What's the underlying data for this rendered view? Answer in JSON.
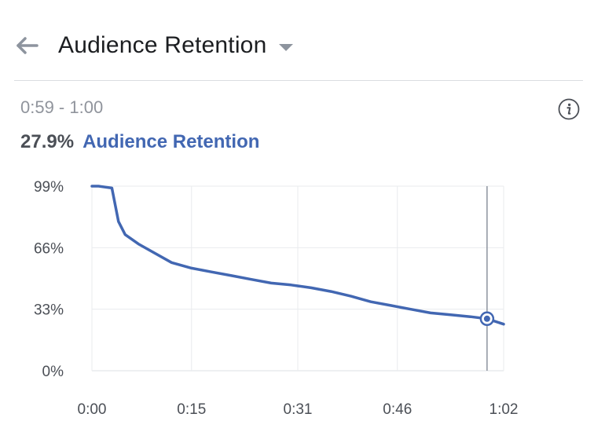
{
  "header": {
    "title": "Audience Retention",
    "back_icon": "arrow-left-icon",
    "dropdown_icon": "caret-down-icon"
  },
  "range_label": "0:59 - 1:00",
  "info_icon": "info-icon",
  "summary": {
    "value": "27.9%",
    "label": "Audience Retention"
  },
  "colors": {
    "series": "#4267b2",
    "grid": "#e9ebee",
    "cursor": "#8d949e"
  },
  "chart_data": {
    "type": "line",
    "series": [
      {
        "name": "Audience Retention",
        "x": [
          0,
          1,
          3,
          4,
          5,
          7,
          9,
          12,
          15,
          18,
          21,
          24,
          27,
          30,
          33,
          36,
          39,
          42,
          45,
          48,
          51,
          54,
          57,
          59.5,
          62
        ],
        "y": [
          99,
          99,
          98,
          80,
          73,
          68,
          64,
          58,
          55,
          53,
          51,
          49,
          47,
          46,
          44.5,
          42.5,
          40,
          37,
          35,
          33,
          31,
          30,
          29,
          27.9,
          25
        ]
      }
    ],
    "xlim": [
      0,
      62
    ],
    "ylim": [
      0,
      99
    ],
    "xticks": [
      0,
      15,
      31,
      46,
      62
    ],
    "xtick_labels": [
      "0:00",
      "0:15",
      "0:31",
      "0:46",
      "1:02"
    ],
    "yticks": [
      0,
      33,
      66,
      99
    ],
    "ytick_labels": [
      "0%",
      "33%",
      "66%",
      "99%"
    ],
    "highlight": {
      "x": 59.5,
      "y": 27.9
    },
    "grid": true
  }
}
